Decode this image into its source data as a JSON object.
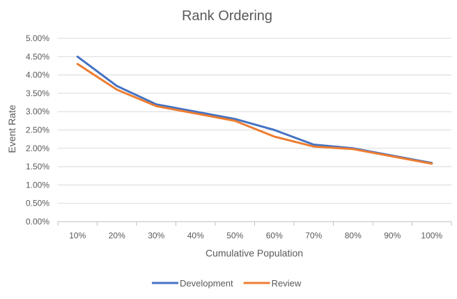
{
  "chart_data": {
    "type": "line",
    "title": "Rank Ordering",
    "xlabel": "Cumulative Population",
    "ylabel": "Event Rate",
    "categories": [
      "10%",
      "20%",
      "30%",
      "40%",
      "50%",
      "60%",
      "70%",
      "80%",
      "90%",
      "100%"
    ],
    "ylim": [
      0,
      0.05
    ],
    "yticks": [
      "0.00%",
      "0.50%",
      "1.00%",
      "1.50%",
      "2.00%",
      "2.50%",
      "3.00%",
      "3.50%",
      "4.00%",
      "4.50%",
      "5.00%"
    ],
    "grid": true,
    "legend_position": "bottom",
    "series": [
      {
        "name": "Development",
        "color": "#4472C4",
        "values": [
          0.045,
          0.037,
          0.032,
          0.03,
          0.028,
          0.025,
          0.021,
          0.02,
          0.018,
          0.016
        ]
      },
      {
        "name": "Review",
        "color": "#ED7D31",
        "values": [
          0.043,
          0.036,
          0.0315,
          0.0295,
          0.0275,
          0.0232,
          0.0205,
          0.0198,
          0.0178,
          0.0158
        ]
      }
    ]
  }
}
